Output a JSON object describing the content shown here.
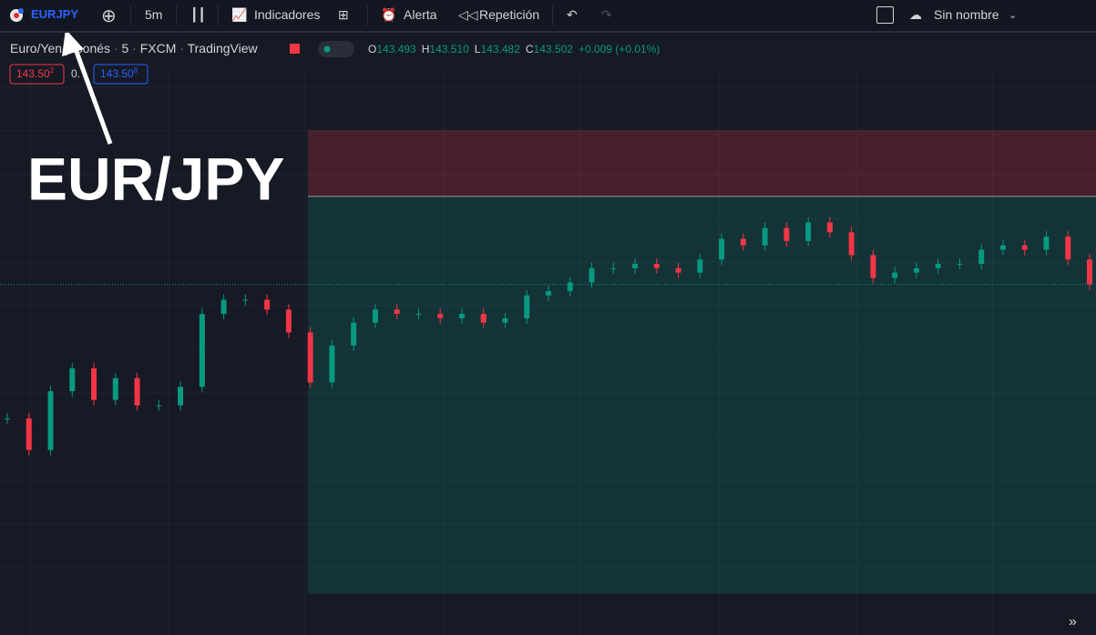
{
  "toolbar": {
    "symbol": "EURJPY",
    "interval": "5m",
    "indicators": "Indicadores",
    "alert": "Alerta",
    "replay": "Repetición",
    "layout_name": "Sin nombre"
  },
  "legend": {
    "title": "Euro/Yen japonés",
    "interval": "5",
    "exchange": "FXCM",
    "source": "TradingView",
    "open_label": "O",
    "open": "143.493",
    "high_label": "H",
    "high": "143.510",
    "low_label": "L",
    "low": "143.482",
    "close_label": "C",
    "close": "143.502",
    "change": "+0.009 (+0.01%)"
  },
  "quotes": {
    "sell": "143.50",
    "sell_sup": "2",
    "spread": "0.",
    "buy": "143.50",
    "buy_sup": "8"
  },
  "annotation": "EUR/JPY",
  "chart_data": {
    "type": "candlestick",
    "ylim": [
      143.18,
      143.73
    ],
    "position": {
      "stop": 143.644,
      "entry": 143.583,
      "target": 143.218
    },
    "values": [
      143.379,
      143.35,
      143.404,
      143.425,
      143.396,
      143.416,
      143.391,
      143.391,
      143.408,
      143.475,
      143.488,
      143.488,
      143.479,
      143.458,
      143.412,
      143.446,
      143.467,
      143.479,
      143.475,
      143.475,
      143.471,
      143.475,
      143.467,
      143.471,
      143.492,
      143.496,
      143.504,
      143.517,
      143.517,
      143.521,
      143.517,
      143.513,
      143.525,
      143.544,
      143.538,
      143.554,
      143.542,
      143.559,
      143.55,
      143.529,
      143.508,
      143.513,
      143.517,
      143.521,
      143.521,
      143.534,
      143.538,
      143.534,
      143.546,
      143.525,
      143.502
    ],
    "up_color": "#089981",
    "down_color": "#f23645"
  }
}
